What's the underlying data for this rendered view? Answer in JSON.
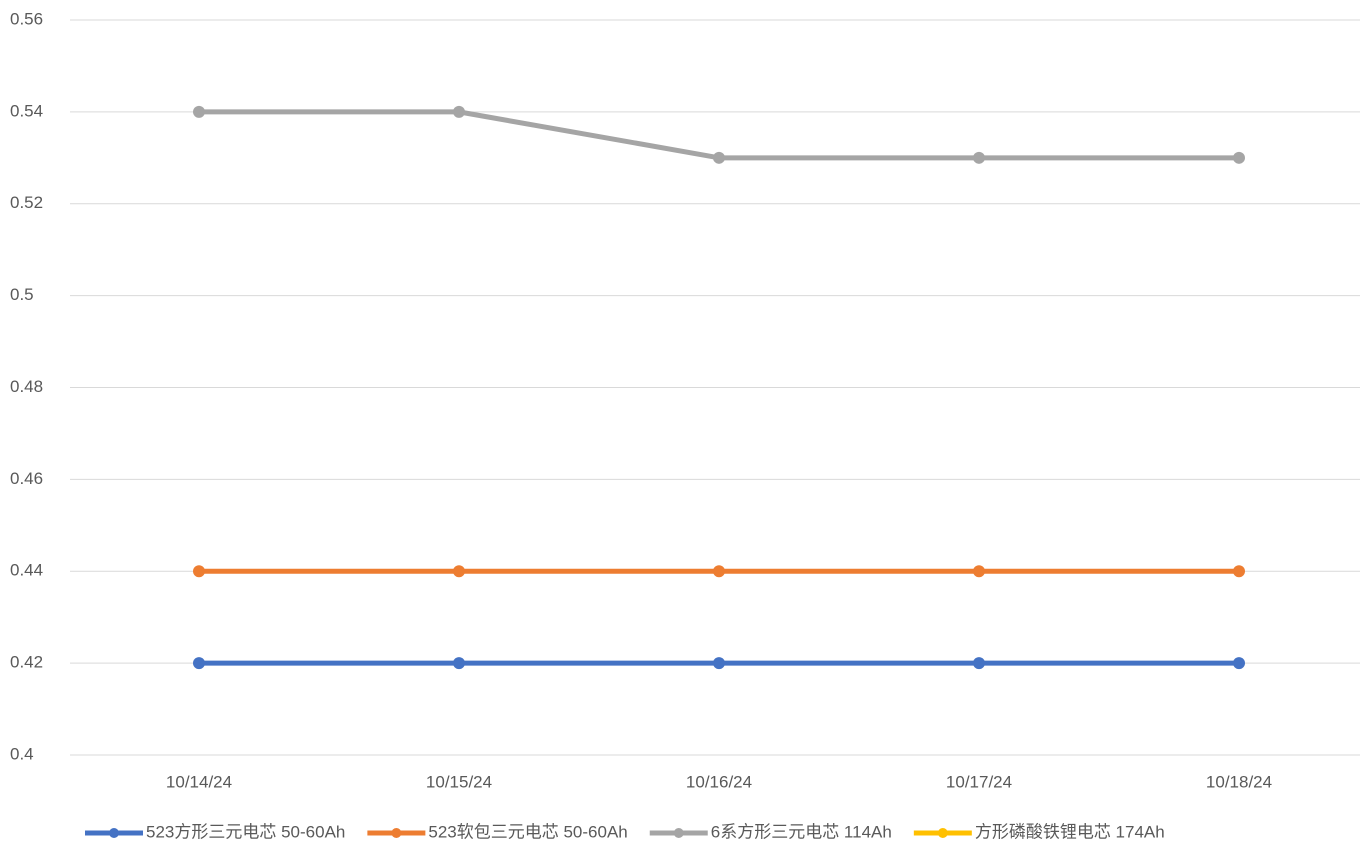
{
  "chart_data": {
    "type": "line",
    "categories": [
      "10/14/24",
      "10/15/24",
      "10/16/24",
      "10/17/24",
      "10/18/24"
    ],
    "series": [
      {
        "name": "523方形三元电芯 50-60Ah",
        "color": "#4472c4",
        "values": [
          0.42,
          0.42,
          0.42,
          0.42,
          0.42
        ]
      },
      {
        "name": "523软包三元电芯 50-60Ah",
        "color": "#ed7d31",
        "values": [
          0.44,
          0.44,
          0.44,
          0.44,
          0.44
        ]
      },
      {
        "name": "6系方形三元电芯 114Ah",
        "color": "#a5a5a5",
        "values": [
          0.54,
          0.54,
          0.53,
          0.53,
          0.53
        ]
      },
      {
        "name": "方形磷酸铁锂电芯 174Ah",
        "color": "#ffc000",
        "values": [
          null,
          null,
          null,
          null,
          null
        ]
      }
    ],
    "ylim": [
      0.4,
      0.56
    ],
    "yticks": [
      0.4,
      0.42,
      0.44,
      0.46,
      0.48,
      0.5,
      0.52,
      0.54,
      0.56
    ],
    "grid": true,
    "legend": "bottom"
  }
}
